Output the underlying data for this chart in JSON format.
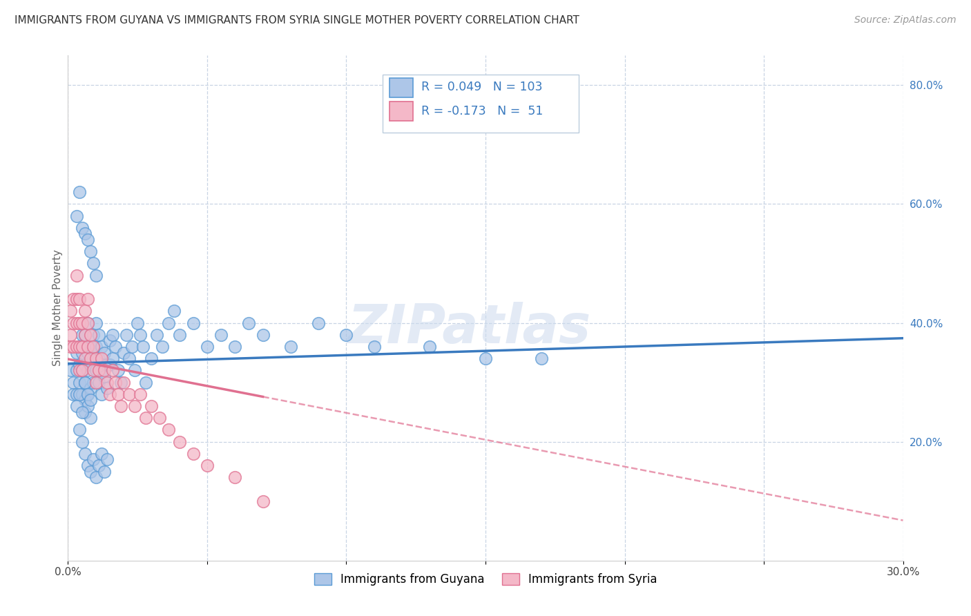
{
  "title": "IMMIGRANTS FROM GUYANA VS IMMIGRANTS FROM SYRIA SINGLE MOTHER POVERTY CORRELATION CHART",
  "source": "Source: ZipAtlas.com",
  "ylabel": "Single Mother Poverty",
  "xlim": [
    0.0,
    0.3
  ],
  "ylim": [
    0.0,
    0.85
  ],
  "xticks": [
    0.0,
    0.05,
    0.1,
    0.15,
    0.2,
    0.25,
    0.3
  ],
  "xticklabels": [
    "0.0%",
    "",
    "",
    "",
    "",
    "",
    "30.0%"
  ],
  "yticks_right": [
    0.2,
    0.4,
    0.6,
    0.8
  ],
  "ytick_right_labels": [
    "20.0%",
    "40.0%",
    "60.0%",
    "80.0%"
  ],
  "guyana_color": "#adc6e8",
  "syria_color": "#f4b8c8",
  "guyana_edge_color": "#5b9bd5",
  "syria_edge_color": "#e07090",
  "guyana_line_color": "#3a7abf",
  "syria_line_color": "#e07090",
  "legend_r_guyana": "0.049",
  "legend_n_guyana": "103",
  "legend_r_syria": "-0.173",
  "legend_n_syria": "51",
  "legend_label_guyana": "Immigrants from Guyana",
  "legend_label_syria": "Immigrants from Syria",
  "watermark": "ZIPatlas",
  "background_color": "#ffffff",
  "grid_color": "#c8d4e4",
  "guyana_x": [
    0.001,
    0.002,
    0.002,
    0.003,
    0.003,
    0.003,
    0.004,
    0.004,
    0.004,
    0.005,
    0.005,
    0.005,
    0.005,
    0.006,
    0.006,
    0.006,
    0.006,
    0.007,
    0.007,
    0.007,
    0.007,
    0.008,
    0.008,
    0.008,
    0.009,
    0.009,
    0.009,
    0.01,
    0.01,
    0.01,
    0.011,
    0.011,
    0.011,
    0.012,
    0.012,
    0.012,
    0.013,
    0.013,
    0.014,
    0.014,
    0.015,
    0.015,
    0.016,
    0.016,
    0.017,
    0.018,
    0.019,
    0.02,
    0.021,
    0.022,
    0.023,
    0.024,
    0.025,
    0.026,
    0.027,
    0.028,
    0.03,
    0.032,
    0.034,
    0.036,
    0.038,
    0.04,
    0.045,
    0.05,
    0.055,
    0.06,
    0.065,
    0.07,
    0.08,
    0.09,
    0.1,
    0.11,
    0.13,
    0.15,
    0.17,
    0.004,
    0.005,
    0.006,
    0.007,
    0.008,
    0.009,
    0.01,
    0.011,
    0.012,
    0.013,
    0.014,
    0.003,
    0.004,
    0.005,
    0.006,
    0.007,
    0.008,
    0.009,
    0.01,
    0.006,
    0.007,
    0.008,
    0.003,
    0.004,
    0.005,
    0.006,
    0.007,
    0.008
  ],
  "guyana_y": [
    0.32,
    0.3,
    0.28,
    0.35,
    0.32,
    0.28,
    0.33,
    0.36,
    0.3,
    0.35,
    0.38,
    0.32,
    0.28,
    0.33,
    0.38,
    0.3,
    0.27,
    0.35,
    0.32,
    0.28,
    0.4,
    0.36,
    0.33,
    0.29,
    0.38,
    0.34,
    0.3,
    0.4,
    0.36,
    0.32,
    0.38,
    0.34,
    0.3,
    0.36,
    0.32,
    0.28,
    0.35,
    0.31,
    0.33,
    0.29,
    0.37,
    0.33,
    0.38,
    0.34,
    0.36,
    0.32,
    0.3,
    0.35,
    0.38,
    0.34,
    0.36,
    0.32,
    0.4,
    0.38,
    0.36,
    0.3,
    0.34,
    0.38,
    0.36,
    0.4,
    0.42,
    0.38,
    0.4,
    0.36,
    0.38,
    0.36,
    0.4,
    0.38,
    0.36,
    0.4,
    0.38,
    0.36,
    0.36,
    0.34,
    0.34,
    0.22,
    0.2,
    0.18,
    0.16,
    0.15,
    0.17,
    0.14,
    0.16,
    0.18,
    0.15,
    0.17,
    0.58,
    0.62,
    0.56,
    0.55,
    0.54,
    0.52,
    0.5,
    0.48,
    0.25,
    0.26,
    0.24,
    0.26,
    0.28,
    0.25,
    0.3,
    0.28,
    0.27
  ],
  "syria_x": [
    0.001,
    0.001,
    0.001,
    0.002,
    0.002,
    0.002,
    0.003,
    0.003,
    0.003,
    0.003,
    0.004,
    0.004,
    0.004,
    0.004,
    0.005,
    0.005,
    0.005,
    0.006,
    0.006,
    0.006,
    0.007,
    0.007,
    0.007,
    0.008,
    0.008,
    0.009,
    0.009,
    0.01,
    0.01,
    0.011,
    0.012,
    0.013,
    0.014,
    0.015,
    0.016,
    0.017,
    0.018,
    0.019,
    0.02,
    0.022,
    0.024,
    0.026,
    0.028,
    0.03,
    0.033,
    0.036,
    0.04,
    0.045,
    0.05,
    0.06,
    0.07
  ],
  "syria_y": [
    0.38,
    0.42,
    0.36,
    0.4,
    0.44,
    0.36,
    0.48,
    0.44,
    0.4,
    0.36,
    0.44,
    0.4,
    0.36,
    0.32,
    0.4,
    0.36,
    0.32,
    0.42,
    0.38,
    0.34,
    0.44,
    0.4,
    0.36,
    0.38,
    0.34,
    0.36,
    0.32,
    0.34,
    0.3,
    0.32,
    0.34,
    0.32,
    0.3,
    0.28,
    0.32,
    0.3,
    0.28,
    0.26,
    0.3,
    0.28,
    0.26,
    0.28,
    0.24,
    0.26,
    0.24,
    0.22,
    0.2,
    0.18,
    0.16,
    0.14,
    0.1
  ]
}
